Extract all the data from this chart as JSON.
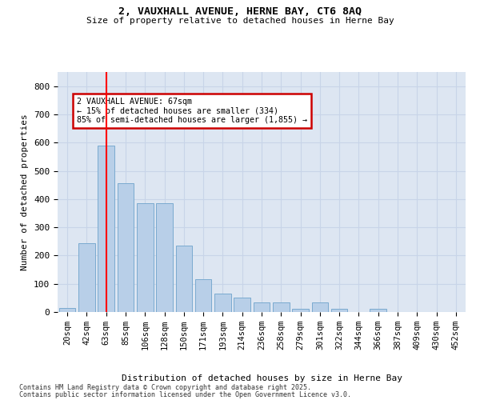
{
  "title_line1": "2, VAUXHALL AVENUE, HERNE BAY, CT6 8AQ",
  "title_line2": "Size of property relative to detached houses in Herne Bay",
  "xlabel": "Distribution of detached houses by size in Herne Bay",
  "ylabel": "Number of detached properties",
  "categories": [
    "20sqm",
    "42sqm",
    "63sqm",
    "85sqm",
    "106sqm",
    "128sqm",
    "150sqm",
    "171sqm",
    "193sqm",
    "214sqm",
    "236sqm",
    "258sqm",
    "279sqm",
    "301sqm",
    "322sqm",
    "344sqm",
    "366sqm",
    "387sqm",
    "409sqm",
    "430sqm",
    "452sqm"
  ],
  "values": [
    15,
    245,
    590,
    455,
    385,
    385,
    235,
    115,
    65,
    50,
    35,
    35,
    10,
    35,
    10,
    0,
    10,
    0,
    0,
    0,
    0
  ],
  "bar_color": "#b8cfe8",
  "bar_edge_color": "#7aaad0",
  "bar_width": 0.85,
  "red_line_index": 2,
  "annotation_text": "2 VAUXHALL AVENUE: 67sqm\n← 15% of detached houses are smaller (334)\n85% of semi-detached houses are larger (1,855) →",
  "annotation_box_color": "#ffffff",
  "annotation_box_edge": "#cc0000",
  "grid_color": "#c8d4e8",
  "background_color": "#dde6f2",
  "footer_line1": "Contains HM Land Registry data © Crown copyright and database right 2025.",
  "footer_line2": "Contains public sector information licensed under the Open Government Licence v3.0.",
  "ylim": [
    0,
    850
  ],
  "yticks": [
    0,
    100,
    200,
    300,
    400,
    500,
    600,
    700,
    800
  ]
}
